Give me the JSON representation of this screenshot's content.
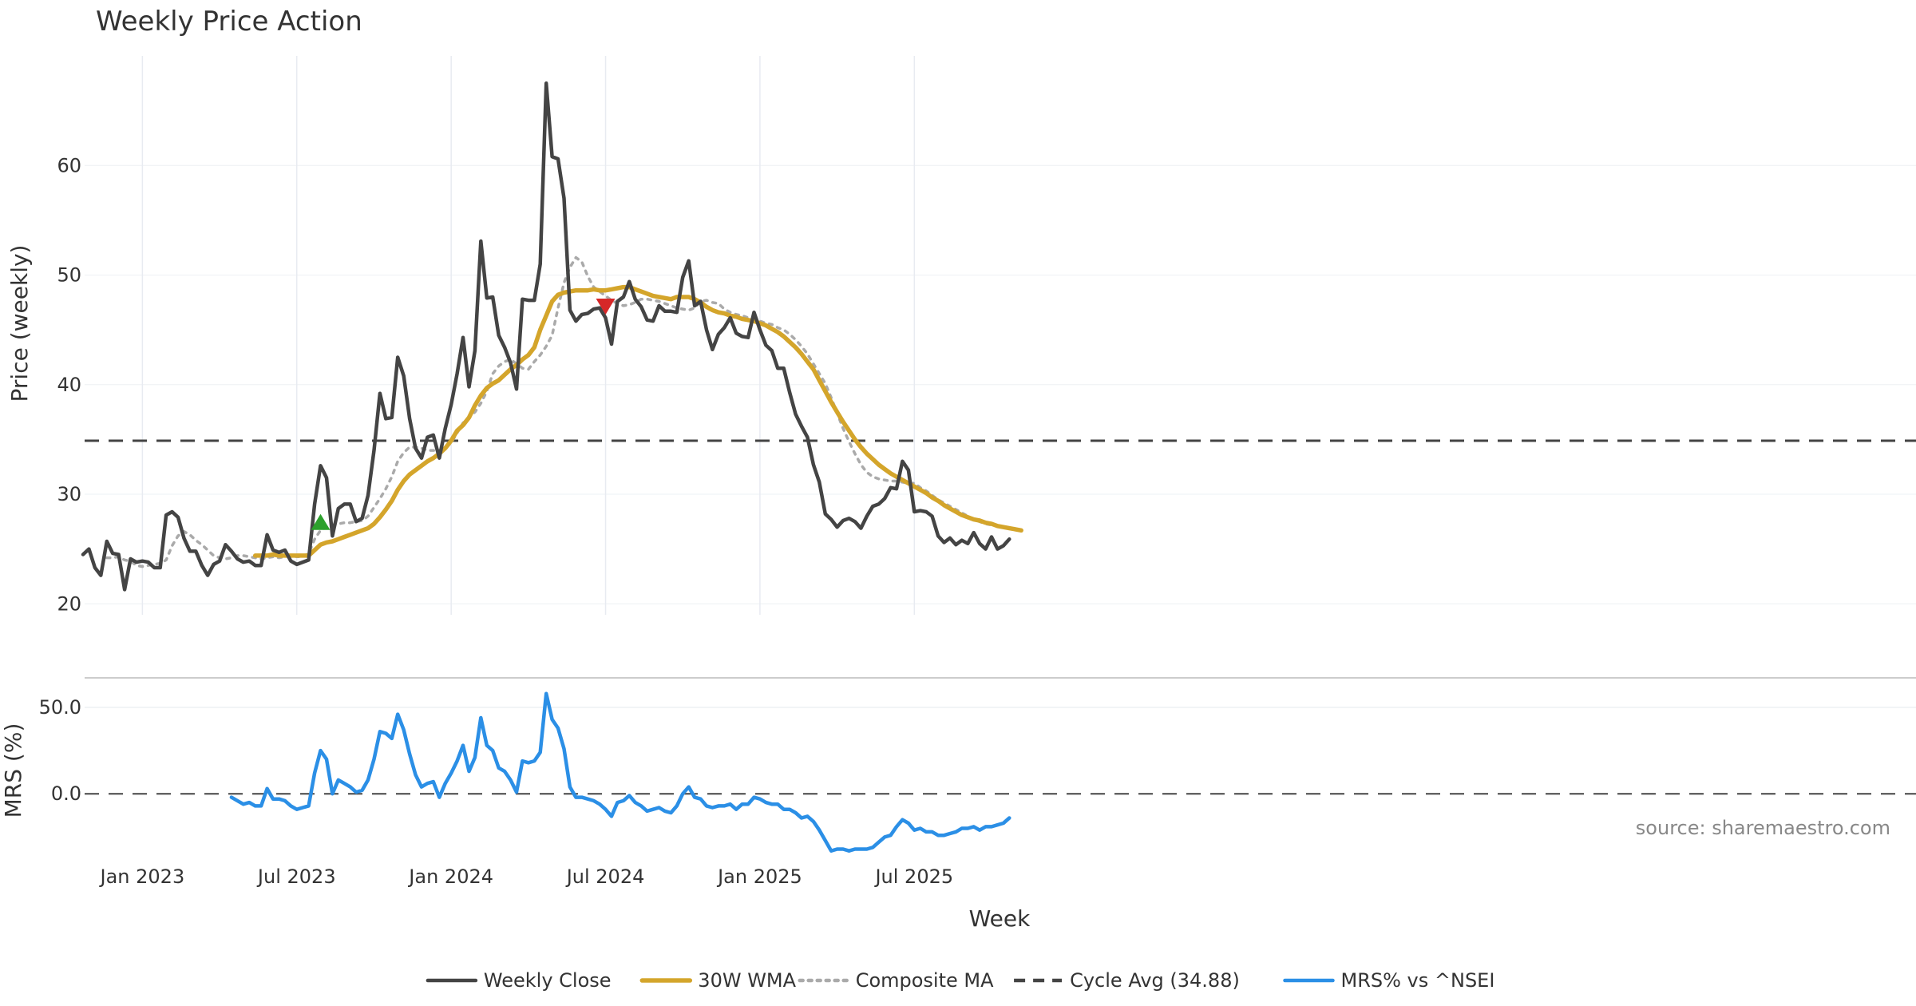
{
  "chart_data": [
    {
      "panel": "price",
      "type": "line",
      "title": "Weekly Price Action",
      "ylabel": "Price (weekly)",
      "xlabel": "Week",
      "ylim": [
        19,
        70
      ],
      "yticks": [
        20,
        30,
        40,
        50,
        60
      ],
      "x_ticks": [
        {
          "week": 10,
          "label": "Jan 2023"
        },
        {
          "week": 36,
          "label": "Jul 2023"
        },
        {
          "week": 62,
          "label": "Jan 2024"
        },
        {
          "week": 88,
          "label": "Jul 2024"
        },
        {
          "week": 114,
          "label": "Jan 2025"
        },
        {
          "week": 140,
          "label": "Jul 2025"
        }
      ],
      "series": [
        {
          "name": "Weekly Close",
          "style": "solid",
          "color": "#444444",
          "x_start": 0,
          "values": [
            24.5,
            25.0,
            23.3,
            22.6,
            25.7,
            24.6,
            24.5,
            21.3,
            24.1,
            23.8,
            23.9,
            23.8,
            23.3,
            23.3,
            28.1,
            28.4,
            27.9,
            26.0,
            24.8,
            24.8,
            23.5,
            22.6,
            23.6,
            23.9,
            25.4,
            24.8,
            24.1,
            23.8,
            23.9,
            23.5,
            23.5,
            26.3,
            24.9,
            24.7,
            24.9,
            23.9,
            23.6,
            23.8,
            24.0,
            29.1,
            32.6,
            31.5,
            26.2,
            28.7,
            29.1,
            29.1,
            27.5,
            27.8,
            29.9,
            34.0,
            39.2,
            36.9,
            37.0,
            42.5,
            40.8,
            36.9,
            34.2,
            33.3,
            35.2,
            35.4,
            33.3,
            36.0,
            38.2,
            41.0,
            44.3,
            39.8,
            43.1,
            53.1,
            47.9,
            48.0,
            44.5,
            43.4,
            42.0,
            39.6,
            47.8,
            47.7,
            47.7,
            51.0,
            67.5,
            60.8,
            60.6,
            57.0,
            46.8,
            45.8,
            46.4,
            46.5,
            46.9,
            47.0,
            46.1,
            43.7,
            47.6,
            48.0,
            49.4,
            47.8,
            47.1,
            45.9,
            45.8,
            47.2,
            46.7,
            46.7,
            46.6,
            49.8,
            51.3,
            47.2,
            47.6,
            45.0,
            43.2,
            44.6,
            45.2,
            46.1,
            44.7,
            44.4,
            44.3,
            46.6,
            45.0,
            43.6,
            43.1,
            41.5,
            41.5,
            39.3,
            37.3,
            36.2,
            35.2,
            32.7,
            31.1,
            28.2,
            27.7,
            27.0,
            27.6,
            27.8,
            27.5,
            26.9,
            28.0,
            28.9,
            29.1,
            29.6,
            30.6,
            30.5,
            33.0,
            32.2,
            28.4,
            28.5,
            28.4,
            28.0,
            26.2,
            25.6,
            26.0,
            25.4,
            25.8,
            25.5,
            26.5,
            25.5,
            25.0,
            26.1,
            25.0,
            25.3,
            25.9
          ]
        },
        {
          "name": "30W WMA",
          "style": "solid",
          "color": "#D4A52B",
          "x_start": 29,
          "values": [
            24.4,
            24.4,
            24.4,
            24.5,
            24.4,
            24.4,
            24.4,
            24.4,
            24.4,
            24.4,
            24.9,
            25.4,
            25.6,
            25.7,
            25.9,
            26.1,
            26.3,
            26.5,
            26.7,
            26.9,
            27.3,
            27.9,
            28.6,
            29.4,
            30.4,
            31.2,
            31.8,
            32.2,
            32.6,
            33.0,
            33.3,
            33.7,
            34.2,
            34.9,
            35.8,
            36.3,
            37.0,
            38.1,
            39.0,
            39.7,
            40.1,
            40.4,
            40.9,
            41.4,
            41.8,
            42.3,
            42.7,
            43.4,
            45.0,
            46.3,
            47.6,
            48.2,
            48.4,
            48.5,
            48.6,
            48.6,
            48.6,
            48.7,
            48.6,
            48.6,
            48.7,
            48.8,
            48.9,
            48.9,
            48.7,
            48.5,
            48.3,
            48.1,
            48.0,
            47.9,
            47.8,
            48.0,
            48.0,
            48.0,
            47.8,
            47.5,
            47.1,
            46.8,
            46.6,
            46.5,
            46.3,
            46.2,
            46.0,
            45.9,
            45.8,
            45.6,
            45.4,
            45.1,
            44.8,
            44.4,
            43.9,
            43.4,
            42.8,
            42.1,
            41.4,
            40.4,
            39.4,
            38.4,
            37.5,
            36.6,
            35.8,
            35.0,
            34.3,
            33.7,
            33.2,
            32.7,
            32.3,
            31.9,
            31.6,
            31.3,
            31.0,
            30.7,
            30.4,
            30.1,
            29.7,
            29.4,
            29.0,
            28.7,
            28.4,
            28.1,
            27.9,
            27.7,
            27.6,
            27.4,
            27.3,
            27.1,
            27.0,
            26.9,
            26.8,
            26.7
          ]
        },
        {
          "name": "Composite MA",
          "style": "dotted",
          "color": "#AAAAAA",
          "x_start": 4,
          "values": [
            24.2,
            24.2,
            24.3,
            24.0,
            23.9,
            23.5,
            23.4,
            23.5,
            23.6,
            23.7,
            24.0,
            25.3,
            26.2,
            26.6,
            26.3,
            25.8,
            25.4,
            24.9,
            24.4,
            24.2,
            24.1,
            24.2,
            24.4,
            24.4,
            24.3,
            24.2,
            24.1,
            24.2,
            24.3,
            24.2,
            24.3,
            24.4,
            24.3,
            24.3,
            24.6,
            25.9,
            26.7,
            27.0,
            27.2,
            27.3,
            27.4,
            27.4,
            27.5,
            27.6,
            28.0,
            28.8,
            29.6,
            30.5,
            31.6,
            33.0,
            33.8,
            34.3,
            34.3,
            34.2,
            34.0,
            34.0,
            34.0,
            34.2,
            34.7,
            35.6,
            36.5,
            37.0,
            37.5,
            38.3,
            39.4,
            41.0,
            41.7,
            42.1,
            42.3,
            41.9,
            41.5,
            41.4,
            42.1,
            42.7,
            43.5,
            44.5,
            47.0,
            49.3,
            50.7,
            51.6,
            51.2,
            49.9,
            48.9,
            48.5,
            48.1,
            47.7,
            47.4,
            47.2,
            47.3,
            47.5,
            47.8,
            47.8,
            47.7,
            47.6,
            47.4,
            47.2,
            47.0,
            46.9,
            46.8,
            47.0,
            47.6,
            47.7,
            47.5,
            47.4,
            46.9,
            46.6,
            46.4,
            46.3,
            46.1,
            45.9,
            45.8,
            45.6,
            45.5,
            45.2,
            45.0,
            44.6,
            44.1,
            43.5,
            42.8,
            41.9,
            41.0,
            40.1,
            38.8,
            37.4,
            36.0,
            34.8,
            33.7,
            32.7,
            32.0,
            31.6,
            31.4,
            31.3,
            31.2,
            31.2,
            31.1,
            31.0,
            31.0,
            30.6,
            30.3,
            29.9,
            29.5,
            29.2,
            28.9,
            28.6,
            28.3,
            28.0,
            27.7,
            27.5,
            27.3,
            27.2,
            27.1,
            26.9
          ]
        },
        {
          "name": "Cycle Avg (34.88)",
          "style": "dashed",
          "color": "#444444",
          "constant": 34.88
        }
      ],
      "markers": [
        {
          "type": "buy",
          "shape": "triangle-up",
          "color": "#2CA02C",
          "week": 40,
          "value": 27.4
        },
        {
          "type": "sell",
          "shape": "triangle-down",
          "color": "#D62728",
          "week": 88,
          "value": 47.2
        }
      ]
    },
    {
      "panel": "mrs",
      "type": "line",
      "ylabel": "MRS (%)",
      "ylim": [
        -35,
        62
      ],
      "yticks": [
        0.0,
        50.0
      ],
      "ytick_labels": [
        "0.0",
        "50.0"
      ],
      "series": [
        {
          "name": "MRS% vs ^NSEI",
          "style": "solid",
          "color": "#2B8FE6",
          "x_start": 25,
          "values": [
            -2,
            -4,
            -6,
            -5,
            -7,
            -7,
            3,
            -3,
            -3,
            -4,
            -7,
            -9,
            -8,
            -7,
            12,
            25,
            20,
            0,
            8,
            6,
            4,
            1,
            2,
            8,
            20,
            36,
            35,
            32,
            46,
            37,
            23,
            11,
            4,
            6,
            7,
            -2,
            6,
            12,
            19,
            28,
            13,
            21,
            44,
            28,
            25,
            15,
            13,
            8,
            1,
            19,
            18,
            19,
            24,
            58,
            43,
            38,
            26,
            4,
            -2,
            -2,
            -3,
            -4,
            -6,
            -9,
            -13,
            -5,
            -4,
            -1,
            -5,
            -7,
            -10,
            -9,
            -8,
            -10,
            -11,
            -7,
            0,
            4,
            -2,
            -3,
            -7,
            -8,
            -7,
            -7,
            -6,
            -9,
            -6,
            -6,
            -2,
            -3,
            -5,
            -6,
            -6,
            -9,
            -9,
            -11,
            -14,
            -13,
            -16,
            -21,
            -27,
            -33,
            -32,
            -32,
            -33,
            -32,
            -32,
            -32,
            -31,
            -28,
            -25,
            -24,
            -19,
            -15,
            -17,
            -21,
            -20,
            -22,
            -22,
            -24,
            -24,
            -23,
            -22,
            -20,
            -20,
            -19,
            -21,
            -19,
            -19,
            -18,
            -17,
            -14
          ]
        },
        {
          "name": "MRS zero",
          "style": "dashed",
          "color": "#444444",
          "constant": 0
        }
      ]
    }
  ],
  "legend": {
    "placement": "bottom",
    "items": [
      {
        "label": "Weekly Close",
        "color": "#444444",
        "style": "solid"
      },
      {
        "label": "30W WMA",
        "color": "#D4A52B",
        "style": "solid"
      },
      {
        "label": "Composite MA",
        "color": "#AAAAAA",
        "style": "dotted"
      },
      {
        "label": "Cycle Avg (34.88)",
        "color": "#444444",
        "style": "dashed"
      },
      {
        "label": "MRS% vs ^NSEI",
        "color": "#2B8FE6",
        "style": "solid"
      }
    ]
  },
  "annotations": {
    "source": "source: sharemaestro.com"
  }
}
